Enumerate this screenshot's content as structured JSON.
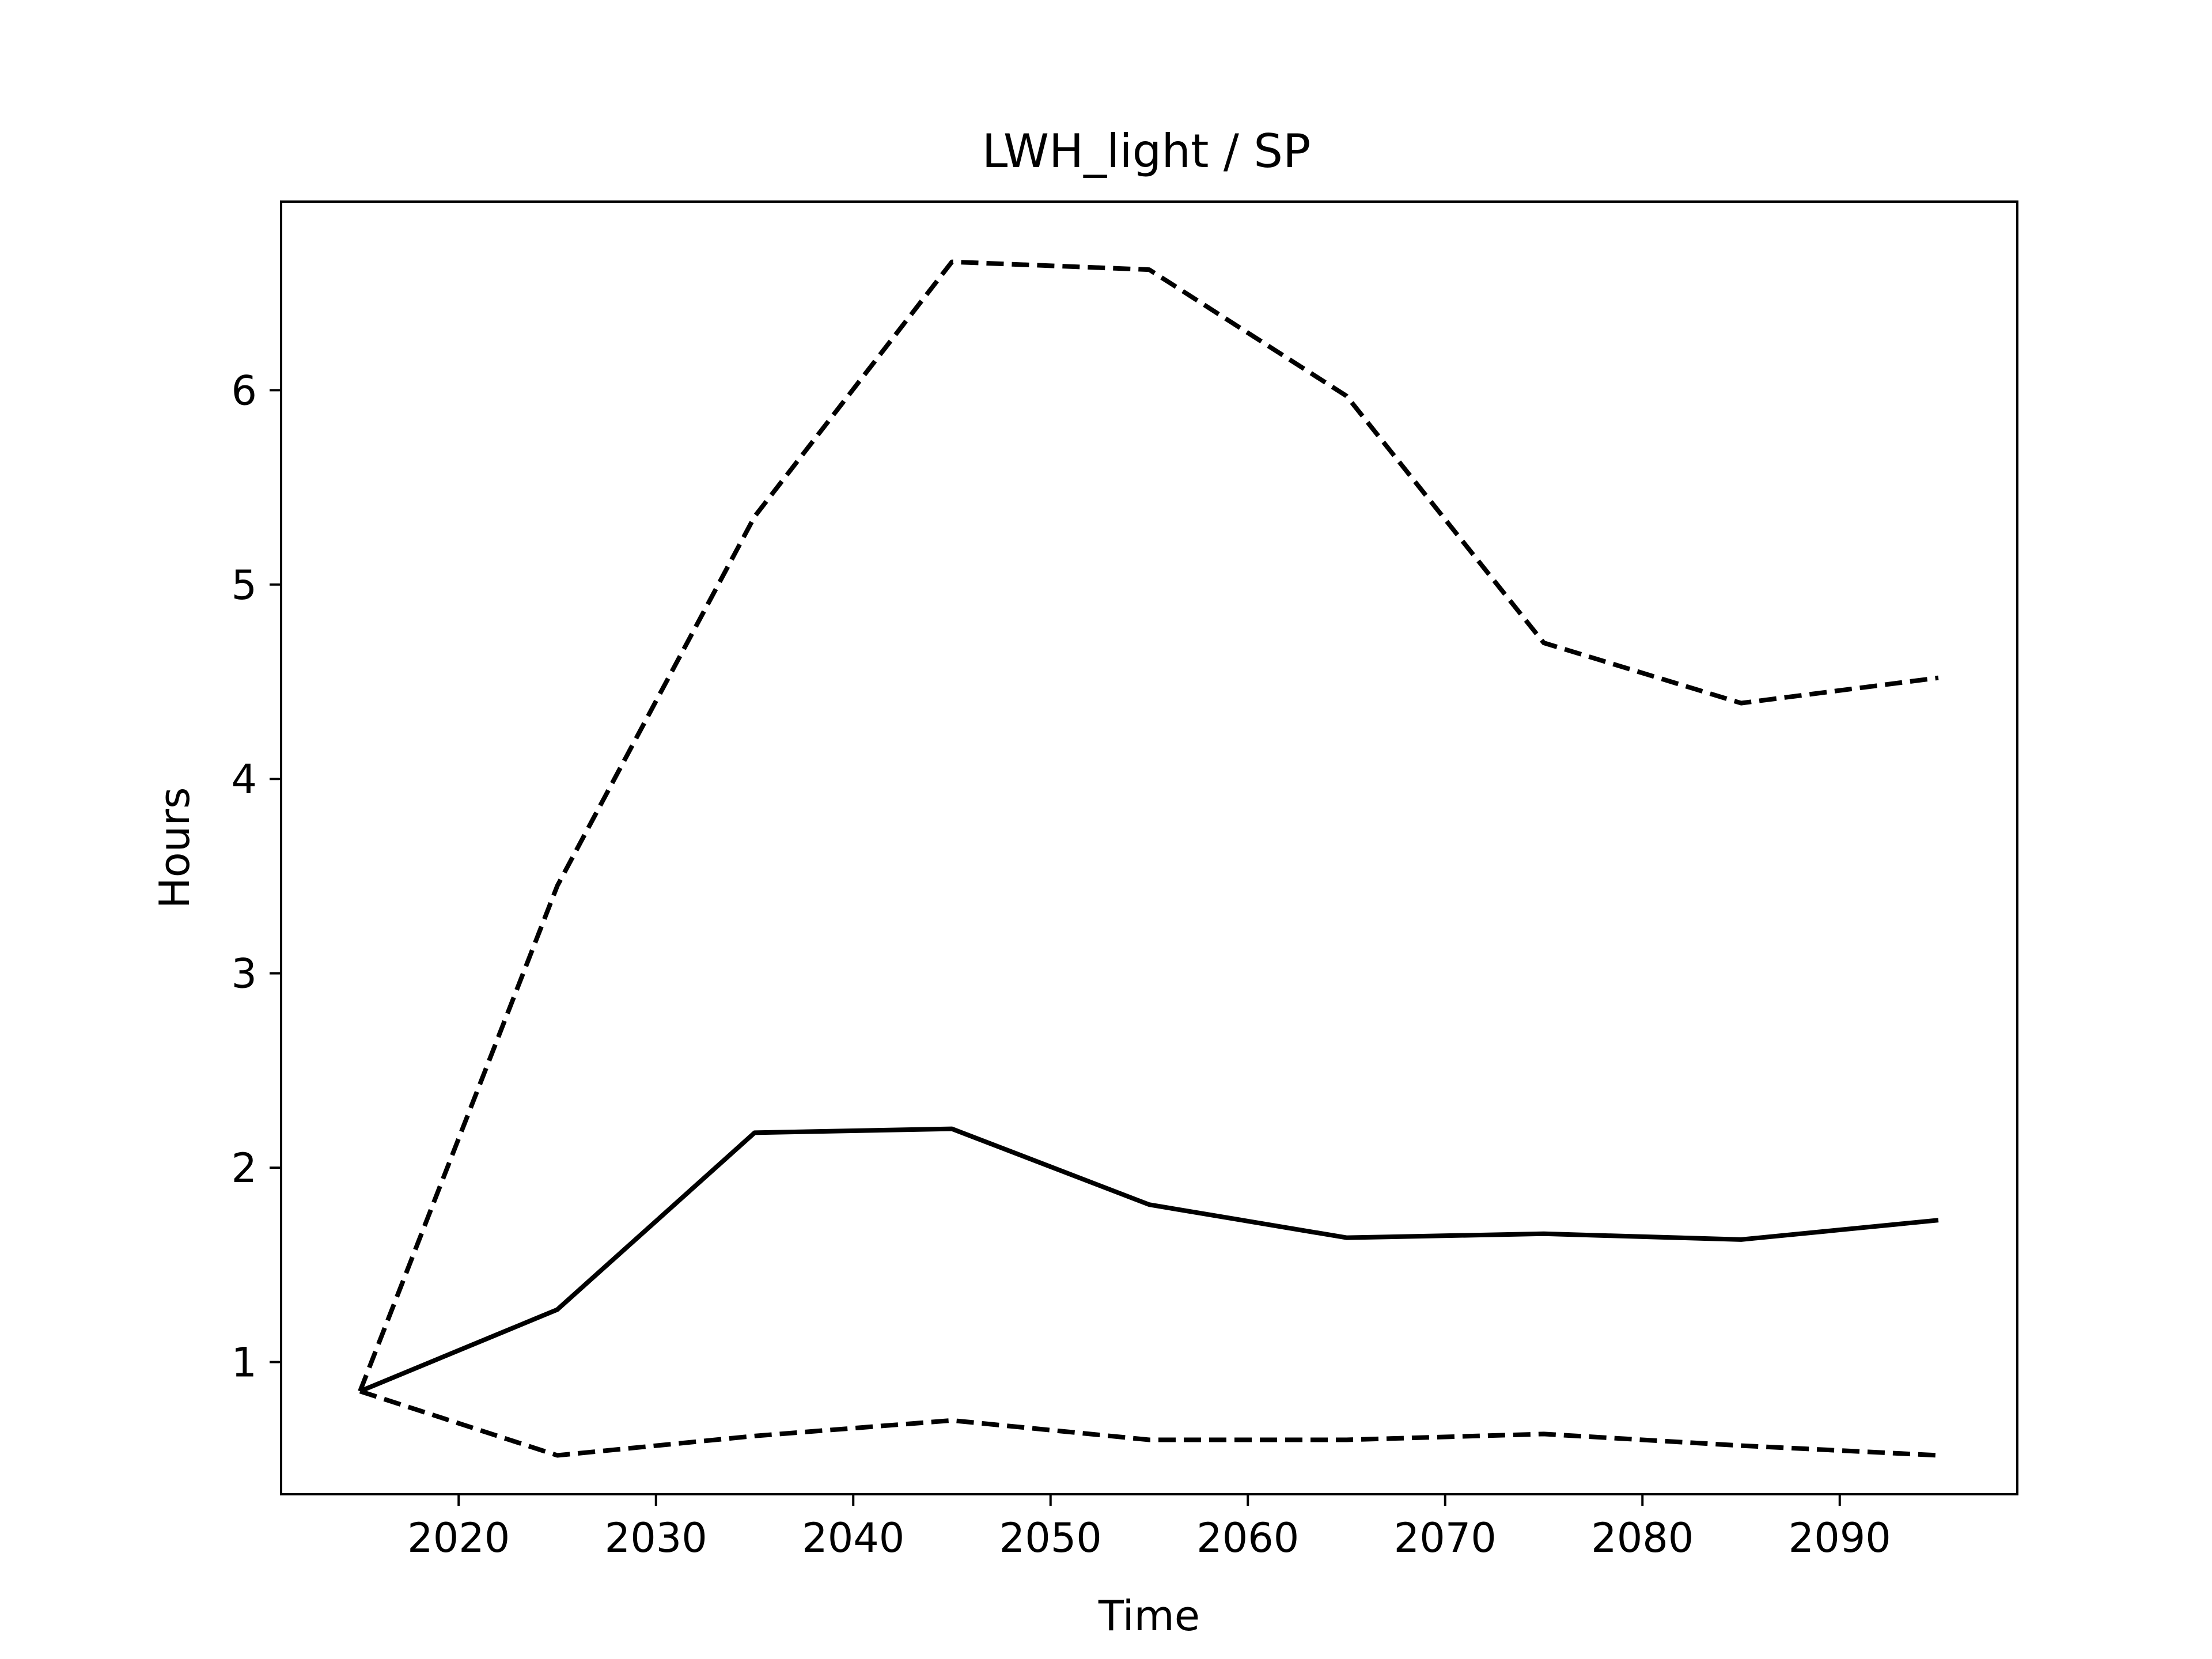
{
  "chart_data": {
    "type": "line",
    "title": "LWH_light / SP",
    "xlabel": "Time",
    "ylabel": "Hours",
    "xlim": [
      2011,
      2099
    ],
    "ylim": [
      0.32,
      6.97
    ],
    "x": [
      2015,
      2025,
      2035,
      2045,
      2055,
      2065,
      2075,
      2085,
      2095
    ],
    "xticks": [
      2020,
      2030,
      2040,
      2050,
      2060,
      2070,
      2080,
      2090
    ],
    "yticks": [
      1,
      2,
      3,
      4,
      5,
      6
    ],
    "grid": false,
    "series": [
      {
        "style": "solid",
        "color": "#000000",
        "values": [
          0.85,
          1.27,
          2.18,
          2.2,
          1.81,
          1.64,
          1.66,
          1.63,
          1.73
        ]
      },
      {
        "style": "dashed",
        "color": "#000000",
        "values": [
          0.85,
          3.45,
          5.35,
          6.66,
          6.62,
          5.97,
          4.7,
          4.39,
          4.52
        ]
      },
      {
        "style": "dashed",
        "color": "#000000",
        "values": [
          0.85,
          0.52,
          0.62,
          0.7,
          0.6,
          0.6,
          0.63,
          0.57,
          0.52
        ]
      }
    ]
  }
}
